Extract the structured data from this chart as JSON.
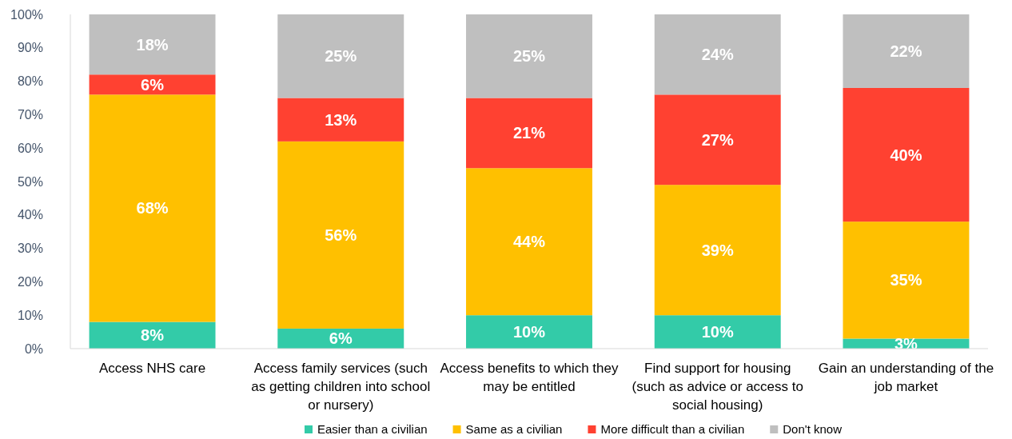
{
  "chart_data": {
    "type": "bar",
    "stacked": true,
    "legend": "bottom",
    "grid": false,
    "categories": [
      "Access NHS care",
      "Access family services (such as getting children into school or nursery)",
      "Access benefits to which they may be entitled",
      "Find support for housing (such as advice or access to social housing)",
      "Gain an understanding of the job market"
    ],
    "ylim": [
      0,
      100
    ],
    "yticks": [
      {
        "value": 0,
        "label": "0%"
      },
      {
        "value": 10,
        "label": "10%"
      },
      {
        "value": 20,
        "label": "20%"
      },
      {
        "value": 30,
        "label": "30%"
      },
      {
        "value": 40,
        "label": "40%"
      },
      {
        "value": 50,
        "label": "50%"
      },
      {
        "value": 60,
        "label": "60%"
      },
      {
        "value": 70,
        "label": "70%"
      },
      {
        "value": 80,
        "label": "80%"
      },
      {
        "value": 90,
        "label": "90%"
      },
      {
        "value": 100,
        "label": "100%"
      }
    ],
    "series": [
      {
        "name": "Easier than a civilian",
        "color": "#33cba8",
        "values": [
          8,
          6,
          10,
          10,
          3
        ],
        "value_labels": [
          "8%",
          "6%",
          "10%",
          "10%",
          "3%"
        ]
      },
      {
        "name": "Same as a civilian",
        "color": "#ffc000",
        "values": [
          68,
          56,
          44,
          39,
          35
        ],
        "value_labels": [
          "68%",
          "56%",
          "44%",
          "39%",
          "35%"
        ]
      },
      {
        "name": "More difficult than a civilian",
        "color": "#ff4131",
        "values": [
          6,
          13,
          21,
          27,
          40
        ],
        "value_labels": [
          "6%",
          "13%",
          "21%",
          "27%",
          "40%"
        ]
      },
      {
        "name": "Don't know",
        "color": "#bfbfbf",
        "values": [
          18,
          25,
          25,
          24,
          22
        ],
        "value_labels": [
          "18%",
          "25%",
          "25%",
          "24%",
          "22%"
        ]
      }
    ]
  }
}
